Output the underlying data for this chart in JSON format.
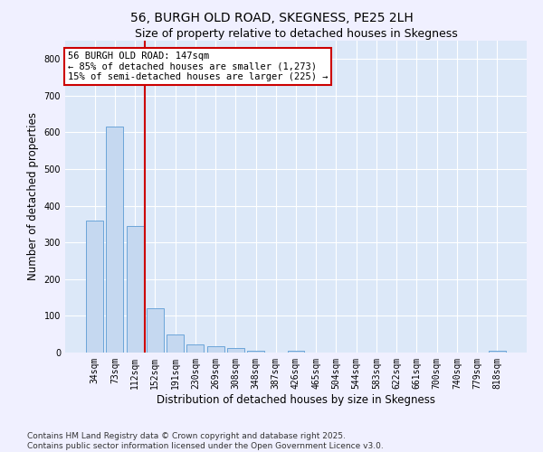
{
  "title": "56, BURGH OLD ROAD, SKEGNESS, PE25 2LH",
  "subtitle": "Size of property relative to detached houses in Skegness",
  "xlabel": "Distribution of detached houses by size in Skegness",
  "ylabel": "Number of detached properties",
  "categories": [
    "34sqm",
    "73sqm",
    "112sqm",
    "152sqm",
    "191sqm",
    "230sqm",
    "269sqm",
    "308sqm",
    "348sqm",
    "387sqm",
    "426sqm",
    "465sqm",
    "504sqm",
    "544sqm",
    "583sqm",
    "622sqm",
    "661sqm",
    "700sqm",
    "740sqm",
    "779sqm",
    "818sqm"
  ],
  "values": [
    360,
    615,
    345,
    120,
    50,
    22,
    18,
    13,
    5,
    0,
    5,
    0,
    0,
    0,
    0,
    0,
    0,
    0,
    0,
    0,
    5
  ],
  "bar_color": "#c5d8f0",
  "bar_edge_color": "#5b9bd5",
  "vline_color": "#cc0000",
  "vline_pos": 2.5,
  "annotation_text": "56 BURGH OLD ROAD: 147sqm\n← 85% of detached houses are smaller (1,273)\n15% of semi-detached houses are larger (225) →",
  "annotation_box_facecolor": "#ffffff",
  "annotation_box_edgecolor": "#cc0000",
  "ylim": [
    0,
    850
  ],
  "yticks": [
    0,
    100,
    200,
    300,
    400,
    500,
    600,
    700,
    800
  ],
  "ax_facecolor": "#dce8f8",
  "fig_facecolor": "#f0f0ff",
  "grid_color": "#ffffff",
  "footer_line1": "Contains HM Land Registry data © Crown copyright and database right 2025.",
  "footer_line2": "Contains public sector information licensed under the Open Government Licence v3.0.",
  "title_fontsize": 10,
  "subtitle_fontsize": 9,
  "axis_label_fontsize": 8.5,
  "tick_fontsize": 7,
  "annotation_fontsize": 7.5,
  "footer_fontsize": 6.5
}
